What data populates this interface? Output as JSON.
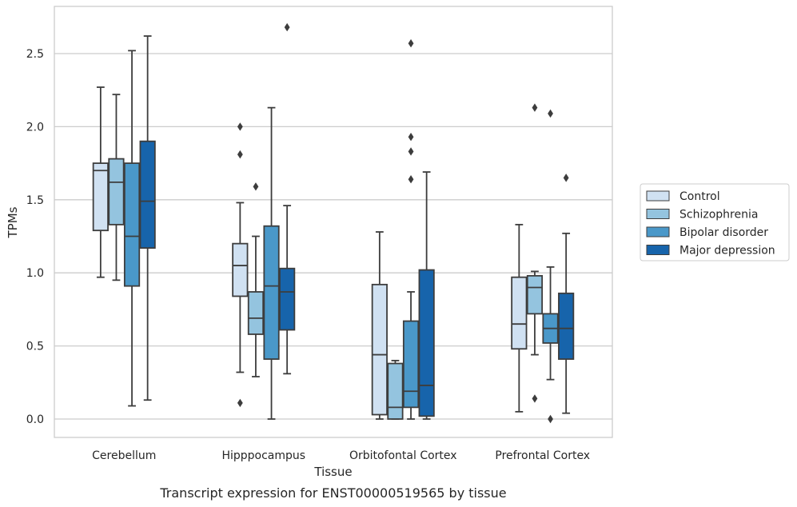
{
  "chart_data": {
    "type": "box",
    "xlabel": "Tissue",
    "ylabel": "TPMs",
    "caption": "Transcript expression for ENST00000519565 by tissue",
    "ylim": [
      -0.13,
      2.82
    ],
    "yticks": [
      0.0,
      0.5,
      1.0,
      1.5,
      2.0,
      2.5
    ],
    "ytick_labels": [
      "0.0",
      "0.5",
      "1.0",
      "1.5",
      "2.0",
      "2.5"
    ],
    "grid": "horizontal",
    "legend_position": "right",
    "categories": [
      "Cerebellum",
      "Hipppocampus",
      "Orbitofontal Cortex",
      "Prefrontal Cortex"
    ],
    "series": [
      {
        "name": "Control",
        "color": "#d0e1f2",
        "boxes": [
          {
            "whislo": 0.97,
            "q1": 1.29,
            "med": 1.7,
            "q3": 1.75,
            "whishi": 2.27,
            "fliers": []
          },
          {
            "whislo": 0.32,
            "q1": 0.84,
            "med": 1.05,
            "q3": 1.2,
            "whishi": 1.48,
            "fliers": [
              0.11,
              1.81,
              2.0
            ]
          },
          {
            "whislo": 0.0,
            "q1": 0.03,
            "med": 0.44,
            "q3": 0.92,
            "whishi": 1.28,
            "fliers": []
          },
          {
            "whislo": 0.05,
            "q1": 0.48,
            "med": 0.65,
            "q3": 0.97,
            "whishi": 1.33,
            "fliers": []
          }
        ]
      },
      {
        "name": "Schizophrenia",
        "color": "#94c4df",
        "boxes": [
          {
            "whislo": 0.95,
            "q1": 1.33,
            "med": 1.62,
            "q3": 1.78,
            "whishi": 2.22,
            "fliers": []
          },
          {
            "whislo": 0.29,
            "q1": 0.58,
            "med": 0.69,
            "q3": 0.87,
            "whishi": 1.25,
            "fliers": [
              1.59
            ]
          },
          {
            "whislo": 0.0,
            "q1": 0.0,
            "med": 0.08,
            "q3": 0.38,
            "whishi": 0.4,
            "fliers": []
          },
          {
            "whislo": 0.44,
            "q1": 0.72,
            "med": 0.9,
            "q3": 0.98,
            "whishi": 1.01,
            "fliers": [
              0.14,
              2.13
            ]
          }
        ]
      },
      {
        "name": "Bipolar disorder",
        "color": "#4a98c9",
        "boxes": [
          {
            "whislo": 0.09,
            "q1": 0.91,
            "med": 1.25,
            "q3": 1.75,
            "whishi": 2.52,
            "fliers": []
          },
          {
            "whislo": 0.0,
            "q1": 0.41,
            "med": 0.91,
            "q3": 1.32,
            "whishi": 2.13,
            "fliers": []
          },
          {
            "whislo": 0.0,
            "q1": 0.08,
            "med": 0.19,
            "q3": 0.67,
            "whishi": 0.87,
            "fliers": [
              1.64,
              1.83,
              1.93,
              2.57
            ]
          },
          {
            "whislo": 0.27,
            "q1": 0.52,
            "med": 0.62,
            "q3": 0.72,
            "whishi": 1.04,
            "fliers": [
              0.0,
              2.09
            ]
          }
        ]
      },
      {
        "name": "Major depression",
        "color": "#1764ab",
        "boxes": [
          {
            "whislo": 0.13,
            "q1": 1.17,
            "med": 1.49,
            "q3": 1.9,
            "whishi": 2.62,
            "fliers": []
          },
          {
            "whislo": 0.31,
            "q1": 0.61,
            "med": 0.87,
            "q3": 1.03,
            "whishi": 1.46,
            "fliers": [
              2.68
            ]
          },
          {
            "whislo": 0.0,
            "q1": 0.02,
            "med": 0.23,
            "q3": 1.02,
            "whishi": 1.69,
            "fliers": []
          },
          {
            "whislo": 0.04,
            "q1": 0.41,
            "med": 0.62,
            "q3": 0.86,
            "whishi": 1.27,
            "fliers": [
              1.65
            ]
          }
        ]
      }
    ]
  }
}
